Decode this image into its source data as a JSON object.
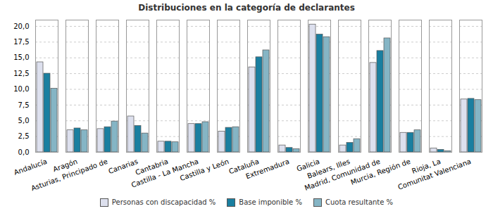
{
  "chart_data": {
    "type": "bar",
    "title": "Distribuciones en la categoría de declarantes",
    "categories": [
      "Andalucía",
      "Aragón",
      "Asturias, Principado de",
      "Canarias",
      "Cantabria",
      "Castilla - La Mancha",
      "Castilla y León",
      "Cataluña",
      "Extremadura",
      "Galicia",
      "Balears, Illes",
      "Madrid, Comunidad de",
      "Murcia, Región de",
      "Rioja, La",
      "Comunitat Valenciana"
    ],
    "series": [
      {
        "name": "Personas con discapacidad %",
        "color": "#dde0ee",
        "values": [
          14.3,
          3.5,
          3.7,
          5.7,
          1.7,
          4.5,
          3.3,
          13.5,
          1.1,
          20.3,
          1.1,
          14.2,
          3.1,
          0.6,
          8.4
        ]
      },
      {
        "name": "Base imponible %",
        "color": "#1a7fa0",
        "values": [
          12.5,
          3.8,
          4.0,
          4.2,
          1.7,
          4.5,
          3.9,
          15.1,
          0.7,
          18.7,
          1.5,
          16.1,
          3.1,
          0.4,
          8.5
        ]
      },
      {
        "name": "Cuota resultante %",
        "color": "#85b5c5",
        "values": [
          10.1,
          3.5,
          4.9,
          3.0,
          1.6,
          4.8,
          4.0,
          16.2,
          0.5,
          18.3,
          2.1,
          18.1,
          3.5,
          0.2,
          8.3
        ]
      }
    ],
    "ylim": [
      0,
      21
    ],
    "yticks": [
      {
        "value": 0,
        "label": "0,0"
      },
      {
        "value": 2.5,
        "label": "2,5"
      },
      {
        "value": 5,
        "label": "5,0"
      },
      {
        "value": 7.5,
        "label": "7,5"
      },
      {
        "value": 10,
        "label": "10,0"
      },
      {
        "value": 12.5,
        "label": "12,5"
      },
      {
        "value": 15,
        "label": "15,0"
      },
      {
        "value": 17.5,
        "label": "17,5"
      },
      {
        "value": 20,
        "label": "20,0"
      }
    ],
    "grid": true,
    "legend": "bottom"
  }
}
